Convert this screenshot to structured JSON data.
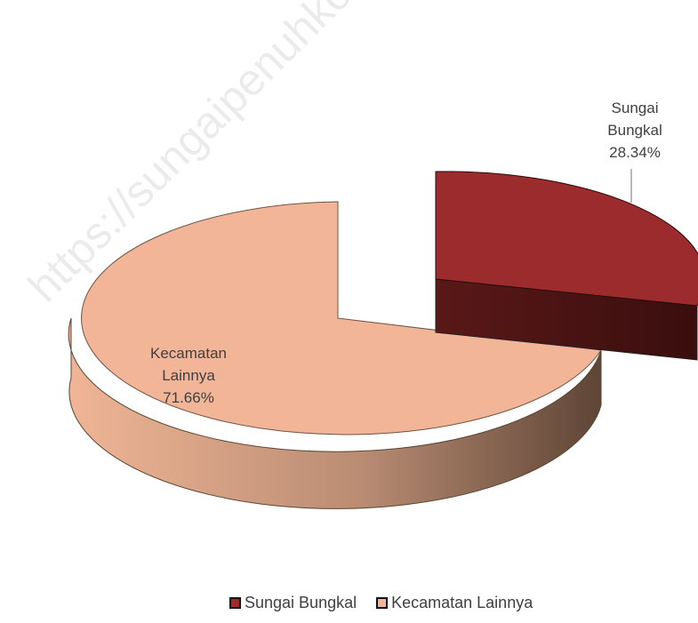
{
  "watermark": "https://sungaipenuhkota.bps.go.id",
  "chart_data": {
    "type": "pie",
    "title": "",
    "style": "3d-exploded",
    "slices": [
      {
        "label_line1": "Sungai",
        "label_line2": "Bungkal",
        "pct_label": "28.34%",
        "legend": "Sungai Bungkal",
        "value": 28.34,
        "color": "#9c2b2e",
        "side_color": "#4a1414"
      },
      {
        "label_line1": "Kecamatan",
        "label_line2": "Lainnya",
        "pct_label": "71.66%",
        "legend": "Kecamatan Lainnya",
        "value": 71.66,
        "color": "#f2b597",
        "side_color": "#8a6650"
      }
    ],
    "legend_position": "bottom"
  }
}
